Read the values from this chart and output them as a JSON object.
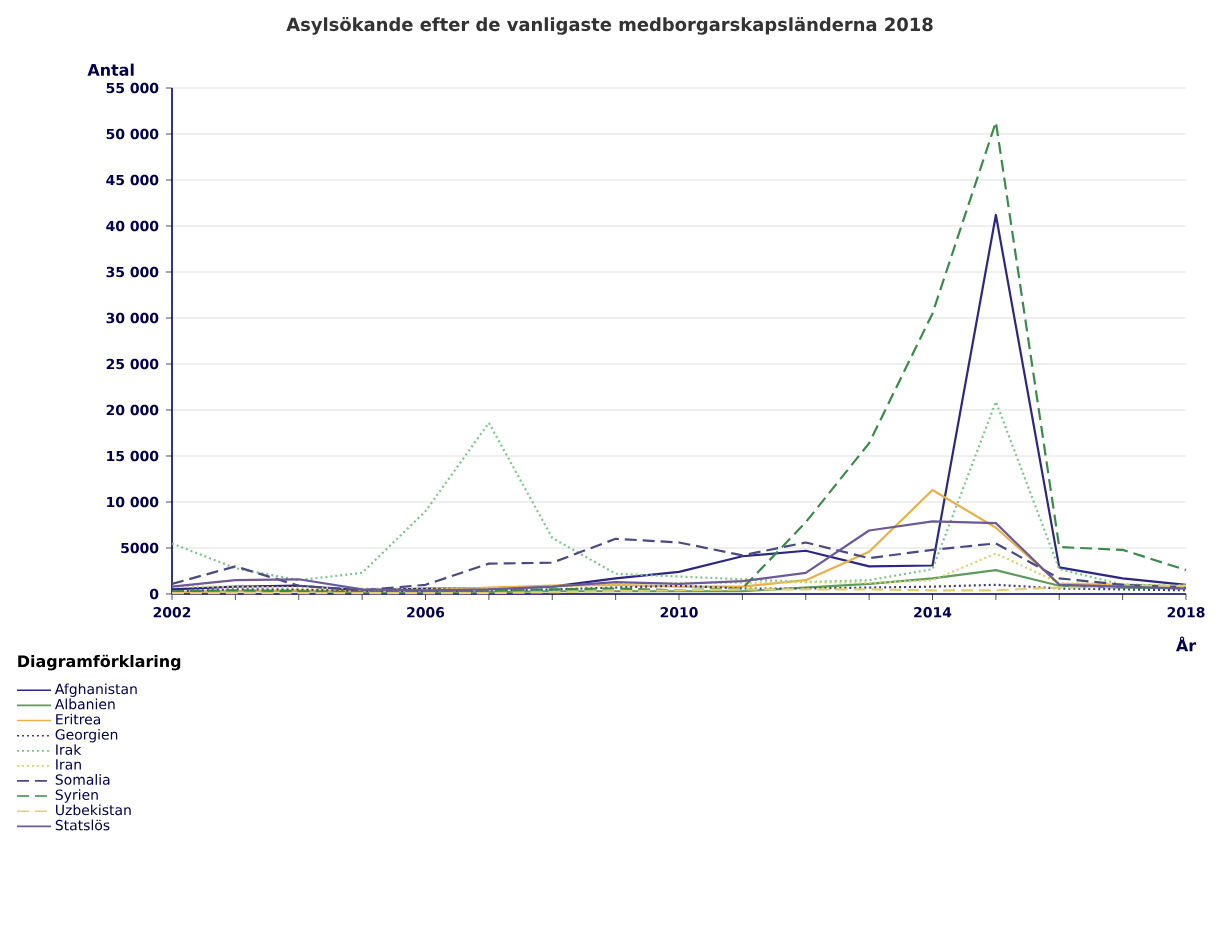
{
  "chart_data": {
    "type": "line",
    "title": "Asylsökande efter de vanligaste medborgarskapsländerna 2018",
    "xlabel": "År",
    "ylabel": "Antal",
    "legend_title": "Diagramförklaring",
    "legend": "bottom",
    "grid": "y",
    "x": [
      2002,
      2003,
      2004,
      2005,
      2006,
      2007,
      2008,
      2009,
      2010,
      2011,
      2012,
      2013,
      2014,
      2015,
      2016,
      2017,
      2018
    ],
    "xlim": [
      2002,
      2018
    ],
    "xticks": [
      2002,
      {
        "value": 2003,
        "label": null
      },
      {
        "value": 2004,
        "label": null
      },
      {
        "value": 2005,
        "label": null
      },
      2006,
      {
        "value": 2007,
        "label": null
      },
      {
        "value": 2008,
        "label": null
      },
      {
        "value": 2009,
        "label": null
      },
      2010,
      {
        "value": 2011,
        "label": null
      },
      {
        "value": 2012,
        "label": null
      },
      {
        "value": 2013,
        "label": null
      },
      2014,
      {
        "value": 2015,
        "label": null
      },
      {
        "value": 2016,
        "label": null
      },
      {
        "value": 2017,
        "label": null
      },
      2018
    ],
    "ylim": [
      0,
      55000
    ],
    "yticks": [
      0,
      5000,
      {
        "value": 10000,
        "label": "10 000"
      },
      {
        "value": 15000,
        "label": "15 000"
      },
      {
        "value": 20000,
        "label": "20 000"
      },
      {
        "value": 25000,
        "label": "25 000"
      },
      {
        "value": 30000,
        "label": "30 000"
      },
      {
        "value": 35000,
        "label": "35 000"
      },
      {
        "value": 40000,
        "label": "40 000"
      },
      {
        "value": 45000,
        "label": "45 000"
      },
      {
        "value": 50000,
        "label": "50 000"
      },
      {
        "value": 55000,
        "label": "55 000"
      }
    ],
    "series": [
      {
        "name": "Afghanistan",
        "color": "#2b2783",
        "line_style": "solid",
        "values": [
          500,
          800,
          900,
          400,
          600,
          600,
          800,
          1700,
          2400,
          4100,
          4700,
          3000,
          3100,
          41200,
          2900,
          1700,
          1000
        ]
      },
      {
        "name": "Albanien",
        "color": "#5c9c5c",
        "line_style": "solid",
        "values": [
          200,
          300,
          300,
          200,
          200,
          200,
          300,
          300,
          300,
          300,
          700,
          1100,
          1700,
          2600,
          900,
          700,
          600
        ]
      },
      {
        "name": "Eritrea",
        "color": "#e8b04a",
        "line_style": "solid",
        "values": [
          200,
          300,
          400,
          300,
          400,
          700,
          900,
          1000,
          800,
          800,
          1500,
          4600,
          11300,
          7200,
          1100,
          1000,
          800
        ]
      },
      {
        "name": "Georgien",
        "color": "#3a3a90",
        "line_style": "dotted",
        "values": [
          300,
          500,
          500,
          300,
          300,
          400,
          500,
          700,
          900,
          600,
          600,
          700,
          800,
          1000,
          600,
          500,
          400
        ]
      },
      {
        "name": "Irak",
        "color": "#7cc48a",
        "line_style": "dotted",
        "values": [
          5500,
          2800,
          1500,
          2300,
          9000,
          18600,
          6100,
          2200,
          1900,
          1600,
          1300,
          1500,
          2700,
          20900,
          2700,
          1000,
          900
        ]
      },
      {
        "name": "Iran",
        "color": "#d8d26a",
        "line_style": "dotted",
        "values": [
          800,
          800,
          700,
          600,
          600,
          600,
          800,
          1100,
          1200,
          1200,
          1300,
          1200,
          1500,
          4400,
          1200,
          1100,
          800
        ]
      },
      {
        "name": "Somalia",
        "color": "#4a4a80",
        "line_style": "dashed",
        "values": [
          1100,
          3000,
          900,
          400,
          1000,
          3300,
          3400,
          6000,
          5600,
          4200,
          5600,
          3900,
          4800,
          5500,
          1700,
          1000,
          700
        ]
      },
      {
        "name": "Syrien",
        "color": "#3a8a4a",
        "line_style": "dashed",
        "values": [
          300,
          400,
          300,
          200,
          300,
          400,
          500,
          600,
          400,
          600,
          7800,
          16400,
          30500,
          51300,
          5100,
          4800,
          2600
        ]
      },
      {
        "name": "Uzbekistan",
        "color": "#e0cf70",
        "line_style": "dashed",
        "values": [
          100,
          100,
          100,
          100,
          100,
          100,
          200,
          300,
          400,
          500,
          500,
          500,
          400,
          400,
          700,
          800,
          900
        ]
      },
      {
        "name": "Statslös",
        "color": "#6a5a9a",
        "line_style": "solid",
        "values": [
          800,
          1500,
          1600,
          500,
          400,
          500,
          800,
          1300,
          1100,
          1400,
          2300,
          6900,
          7900,
          7700,
          1000,
          800,
          600
        ]
      }
    ]
  }
}
